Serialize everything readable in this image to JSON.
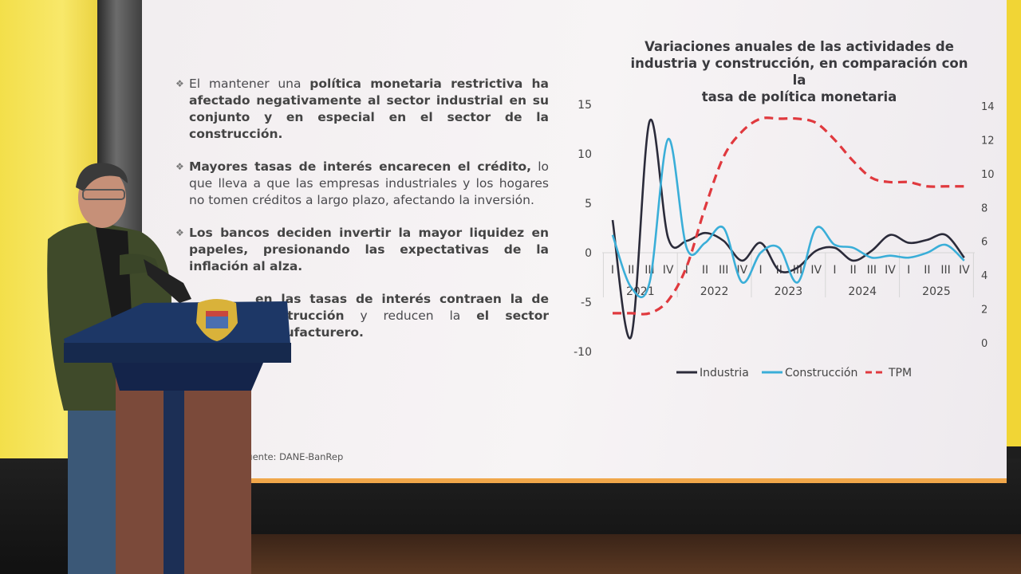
{
  "slide": {
    "bullets": [
      {
        "pre": "El mantener una ",
        "bold": "política monetaria restrictiva ha afectado negativamente al sector industrial en su conjunto y en especial en el sector de la construcción.",
        "post": ""
      },
      {
        "pre": "",
        "bold": "Mayores tasas de interés encarecen el crédito,",
        "post": " lo que lleva a que las empresas industriales y los hogares no tomen créditos a largo plazo, afectando la inversión."
      },
      {
        "pre": "",
        "bold": "Los bancos deciden invertir la mayor liquidez en papeles, presionando las expectativas de la inflación al alza.",
        "post": ""
      },
      {
        "pre": "",
        "bold": "en las tasas de interés contraen la de construcción",
        "post": " y reducen la",
        "tail": "el sector manufacturero."
      }
    ],
    "source": ". Fuente: DANE-BanRep"
  },
  "chart_data": {
    "type": "line",
    "title": "Variaciones anuales de las actividades de industria y construcción, en comparación con la tasa de política monetaria",
    "title_lines": [
      "Variaciones anuales de las actividades de",
      "industria y construcción, en comparación con la",
      "tasa de política monetaria"
    ],
    "years": [
      "2021",
      "2022",
      "2023",
      "2024",
      "2025"
    ],
    "quarters": [
      "I",
      "II",
      "III",
      "IV"
    ],
    "y_left": {
      "range": [
        -10,
        15
      ],
      "ticks": [
        "15",
        "10",
        "5",
        "0",
        "-5",
        "-10"
      ]
    },
    "y_right": {
      "range": [
        0,
        14
      ],
      "ticks": [
        "14",
        "12",
        "10",
        "8",
        "6",
        "4",
        "2",
        "0"
      ]
    },
    "series": [
      {
        "name": "Industria",
        "axis": "left",
        "color": "#2b2b3a",
        "style": "solid",
        "values": [
          3.3,
          -8.5,
          13.3,
          1.5,
          1.2,
          2.0,
          1.2,
          -0.8,
          1.0,
          -1.8,
          -1.5,
          0.2,
          0.5,
          -0.8,
          0.2,
          1.8,
          1.0,
          1.3,
          1.8,
          -0.5
        ]
      },
      {
        "name": "Construcción",
        "axis": "left",
        "color": "#3aaed8",
        "style": "solid",
        "values": [
          1.8,
          -3.5,
          -3.0,
          11.5,
          0.5,
          1.0,
          2.5,
          -3.0,
          0.0,
          0.5,
          -3.0,
          2.5,
          0.8,
          0.5,
          -0.5,
          -0.3,
          -0.5,
          0.0,
          0.8,
          -0.8
        ]
      },
      {
        "name": "TPM",
        "axis": "right",
        "color": "#e0393e",
        "style": "dashed",
        "values": [
          1.75,
          1.75,
          1.75,
          2.5,
          4.5,
          8.0,
          11.0,
          12.5,
          13.25,
          13.25,
          13.25,
          13.0,
          12.0,
          10.75,
          9.75,
          9.5,
          9.5,
          9.25,
          9.25,
          9.25
        ]
      }
    ],
    "legend": "bottom",
    "grid": false
  }
}
